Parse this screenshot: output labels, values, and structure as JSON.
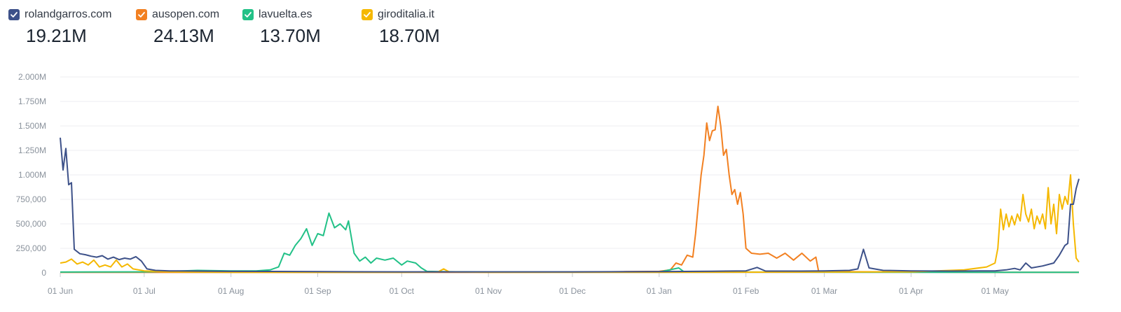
{
  "legend": [
    {
      "label": "rolandgarros.com",
      "value": "19.21M",
      "color": "#3d5189",
      "checked": true
    },
    {
      "label": "ausopen.com",
      "value": "24.13M",
      "color": "#f28021",
      "checked": true
    },
    {
      "label": "lavuelta.es",
      "value": "13.70M",
      "color": "#22c187",
      "checked": true
    },
    {
      "label": "giroditalia.it",
      "value": "18.70M",
      "color": "#f5b800",
      "checked": true
    }
  ],
  "chart_data": {
    "type": "line",
    "title": "",
    "xlabel": "",
    "ylabel": "",
    "grid": true,
    "legend_position": "top-left",
    "ylim": [
      0,
      2000000
    ],
    "x_range": [
      "Jun 01",
      "May 31"
    ],
    "y_ticks": [
      "0",
      "250,000",
      "500,000",
      "750,000",
      "1.000M",
      "1.250M",
      "1.500M",
      "1.750M",
      "2.000M"
    ],
    "x_ticks": [
      "01 Jun",
      "01 Jul",
      "01 Aug",
      "01 Sep",
      "01 Oct",
      "01 Nov",
      "01 Dec",
      "01 Jan",
      "01 Feb",
      "01 Mar",
      "01 Apr",
      "01 May"
    ],
    "series": [
      {
        "name": "rolandgarros.com",
        "color": "#3d5189",
        "points": [
          [
            "Jun 01",
            1380000
          ],
          [
            "Jun 02",
            1050000
          ],
          [
            "Jun 03",
            1270000
          ],
          [
            "Jun 04",
            900000
          ],
          [
            "Jun 05",
            920000
          ],
          [
            "Jun 06",
            240000
          ],
          [
            "Jun 08",
            195000
          ],
          [
            "Jun 10",
            185000
          ],
          [
            "Jun 12",
            170000
          ],
          [
            "Jun 14",
            160000
          ],
          [
            "Jun 16",
            175000
          ],
          [
            "Jun 18",
            140000
          ],
          [
            "Jun 20",
            160000
          ],
          [
            "Jun 22",
            135000
          ],
          [
            "Jun 24",
            150000
          ],
          [
            "Jun 26",
            140000
          ],
          [
            "Jun 28",
            165000
          ],
          [
            "Jun 30",
            120000
          ],
          [
            "Jul 02",
            40000
          ],
          [
            "Jul 05",
            25000
          ],
          [
            "Jul 10",
            20000
          ],
          [
            "Jul 20",
            18000
          ],
          [
            "Aug 01",
            15000
          ],
          [
            "Aug 15",
            14000
          ],
          [
            "Sep 01",
            12000
          ],
          [
            "Sep 15",
            11000
          ],
          [
            "Oct 01",
            10000
          ],
          [
            "Nov 01",
            10000
          ],
          [
            "Dec 01",
            10000
          ],
          [
            "Jan 01",
            12000
          ],
          [
            "Jan 15",
            15000
          ],
          [
            "Jan 25",
            18000
          ],
          [
            "Feb 01",
            20000
          ],
          [
            "Feb 05",
            55000
          ],
          [
            "Feb 08",
            18000
          ],
          [
            "Feb 20",
            18000
          ],
          [
            "Mar 01",
            20000
          ],
          [
            "Mar 10",
            25000
          ],
          [
            "Mar 13",
            40000
          ],
          [
            "Mar 15",
            240000
          ],
          [
            "Mar 17",
            50000
          ],
          [
            "Mar 22",
            25000
          ],
          [
            "Apr 01",
            20000
          ],
          [
            "Apr 15",
            18000
          ],
          [
            "May 01",
            20000
          ],
          [
            "May 05",
            30000
          ],
          [
            "May 08",
            45000
          ],
          [
            "May 10",
            30000
          ],
          [
            "May 12",
            100000
          ],
          [
            "May 14",
            50000
          ],
          [
            "May 18",
            70000
          ],
          [
            "May 22",
            100000
          ],
          [
            "May 24",
            180000
          ],
          [
            "May 26",
            280000
          ],
          [
            "May 27",
            300000
          ],
          [
            "May 28",
            700000
          ],
          [
            "May 29",
            700000
          ],
          [
            "May 30",
            860000
          ],
          [
            "May 31",
            960000
          ]
        ]
      },
      {
        "name": "ausopen.com",
        "color": "#f28021",
        "points": [
          [
            "Jun 01",
            5000
          ],
          [
            "Jul 01",
            5000
          ],
          [
            "Aug 01",
            5000
          ],
          [
            "Sep 01",
            5000
          ],
          [
            "Oct 01",
            5000
          ],
          [
            "Nov 01",
            5000
          ],
          [
            "Dec 01",
            8000
          ],
          [
            "Dec 20",
            12000
          ],
          [
            "Jan 01",
            15000
          ],
          [
            "Jan 05",
            30000
          ],
          [
            "Jan 07",
            100000
          ],
          [
            "Jan 09",
            80000
          ],
          [
            "Jan 11",
            180000
          ],
          [
            "Jan 13",
            160000
          ],
          [
            "Jan 14",
            400000
          ],
          [
            "Jan 15",
            700000
          ],
          [
            "Jan 16",
            1000000
          ],
          [
            "Jan 17",
            1200000
          ],
          [
            "Jan 18",
            1530000
          ],
          [
            "Jan 19",
            1350000
          ],
          [
            "Jan 20",
            1450000
          ],
          [
            "Jan 21",
            1460000
          ],
          [
            "Jan 22",
            1700000
          ],
          [
            "Jan 23",
            1500000
          ],
          [
            "Jan 24",
            1200000
          ],
          [
            "Jan 25",
            1260000
          ],
          [
            "Jan 26",
            1000000
          ],
          [
            "Jan 27",
            800000
          ],
          [
            "Jan 28",
            850000
          ],
          [
            "Jan 29",
            700000
          ],
          [
            "Jan 30",
            820000
          ],
          [
            "Jan 31",
            600000
          ],
          [
            "Feb 01",
            250000
          ],
          [
            "Feb 03",
            200000
          ],
          [
            "Feb 06",
            190000
          ],
          [
            "Feb 09",
            200000
          ],
          [
            "Feb 12",
            150000
          ],
          [
            "Feb 15",
            200000
          ],
          [
            "Feb 18",
            130000
          ],
          [
            "Feb 21",
            200000
          ],
          [
            "Feb 24",
            120000
          ],
          [
            "Feb 26",
            160000
          ],
          [
            "Feb 27",
            10000
          ],
          [
            "Mar 01",
            12000
          ],
          [
            "Apr 01",
            8000
          ],
          [
            "May 01",
            5000
          ],
          [
            "May 31",
            5000
          ]
        ]
      },
      {
        "name": "lavuelta.es",
        "color": "#22c187",
        "points": [
          [
            "Jun 01",
            8000
          ],
          [
            "Jul 01",
            10000
          ],
          [
            "Jul 10",
            15000
          ],
          [
            "Jul 20",
            25000
          ],
          [
            "Aug 01",
            20000
          ],
          [
            "Aug 10",
            20000
          ],
          [
            "Aug 15",
            30000
          ],
          [
            "Aug 18",
            60000
          ],
          [
            "Aug 20",
            200000
          ],
          [
            "Aug 22",
            180000
          ],
          [
            "Aug 24",
            280000
          ],
          [
            "Aug 26",
            350000
          ],
          [
            "Aug 28",
            450000
          ],
          [
            "Aug 30",
            280000
          ],
          [
            "Sep 01",
            400000
          ],
          [
            "Sep 03",
            380000
          ],
          [
            "Sep 05",
            610000
          ],
          [
            "Sep 07",
            460000
          ],
          [
            "Sep 09",
            500000
          ],
          [
            "Sep 11",
            440000
          ],
          [
            "Sep 12",
            530000
          ],
          [
            "Sep 14",
            200000
          ],
          [
            "Sep 16",
            120000
          ],
          [
            "Sep 18",
            160000
          ],
          [
            "Sep 20",
            100000
          ],
          [
            "Sep 22",
            150000
          ],
          [
            "Sep 25",
            130000
          ],
          [
            "Sep 28",
            150000
          ],
          [
            "Oct 01",
            80000
          ],
          [
            "Oct 03",
            120000
          ],
          [
            "Oct 06",
            100000
          ],
          [
            "Oct 08",
            50000
          ],
          [
            "Oct 10",
            15000
          ],
          [
            "Oct 15",
            12000
          ],
          [
            "Nov 01",
            8000
          ],
          [
            "Jan 01",
            8000
          ],
          [
            "Jan 08",
            50000
          ],
          [
            "Jan 10",
            8000
          ],
          [
            "May 31",
            5000
          ]
        ]
      },
      {
        "name": "giroditalia.it",
        "color": "#f5b800",
        "points": [
          [
            "Jun 01",
            100000
          ],
          [
            "Jun 03",
            110000
          ],
          [
            "Jun 05",
            140000
          ],
          [
            "Jun 07",
            90000
          ],
          [
            "Jun 09",
            110000
          ],
          [
            "Jun 11",
            80000
          ],
          [
            "Jun 13",
            130000
          ],
          [
            "Jun 15",
            60000
          ],
          [
            "Jun 17",
            80000
          ],
          [
            "Jun 19",
            60000
          ],
          [
            "Jun 21",
            130000
          ],
          [
            "Jun 23",
            60000
          ],
          [
            "Jun 25",
            90000
          ],
          [
            "Jun 27",
            40000
          ],
          [
            "Jul 01",
            20000
          ],
          [
            "Jul 10",
            10000
          ],
          [
            "Aug 01",
            5000
          ],
          [
            "Oct 01",
            5000
          ],
          [
            "Oct 14",
            10000
          ],
          [
            "Oct 16",
            40000
          ],
          [
            "Oct 18",
            10000
          ],
          [
            "Nov 01",
            5000
          ],
          [
            "Jan 01",
            5000
          ],
          [
            "Mar 01",
            8000
          ],
          [
            "Apr 01",
            10000
          ],
          [
            "Apr 20",
            30000
          ],
          [
            "Apr 28",
            60000
          ],
          [
            "May 01",
            100000
          ],
          [
            "May 02",
            250000
          ],
          [
            "May 03",
            650000
          ],
          [
            "May 04",
            440000
          ],
          [
            "May 05",
            600000
          ],
          [
            "May 06",
            470000
          ],
          [
            "May 07",
            580000
          ],
          [
            "May 08",
            490000
          ],
          [
            "May 09",
            600000
          ],
          [
            "May 10",
            530000
          ],
          [
            "May 11",
            800000
          ],
          [
            "May 12",
            600000
          ],
          [
            "May 13",
            520000
          ],
          [
            "May 14",
            650000
          ],
          [
            "May 15",
            450000
          ],
          [
            "May 16",
            580000
          ],
          [
            "May 17",
            500000
          ],
          [
            "May 18",
            600000
          ],
          [
            "May 19",
            450000
          ],
          [
            "May 20",
            870000
          ],
          [
            "May 21",
            500000
          ],
          [
            "May 22",
            700000
          ],
          [
            "May 23",
            400000
          ],
          [
            "May 24",
            800000
          ],
          [
            "May 25",
            650000
          ],
          [
            "May 26",
            780000
          ],
          [
            "May 27",
            700000
          ],
          [
            "May 28",
            1000000
          ],
          [
            "May 29",
            500000
          ],
          [
            "May 30",
            150000
          ],
          [
            "May 31",
            110000
          ]
        ]
      }
    ]
  }
}
